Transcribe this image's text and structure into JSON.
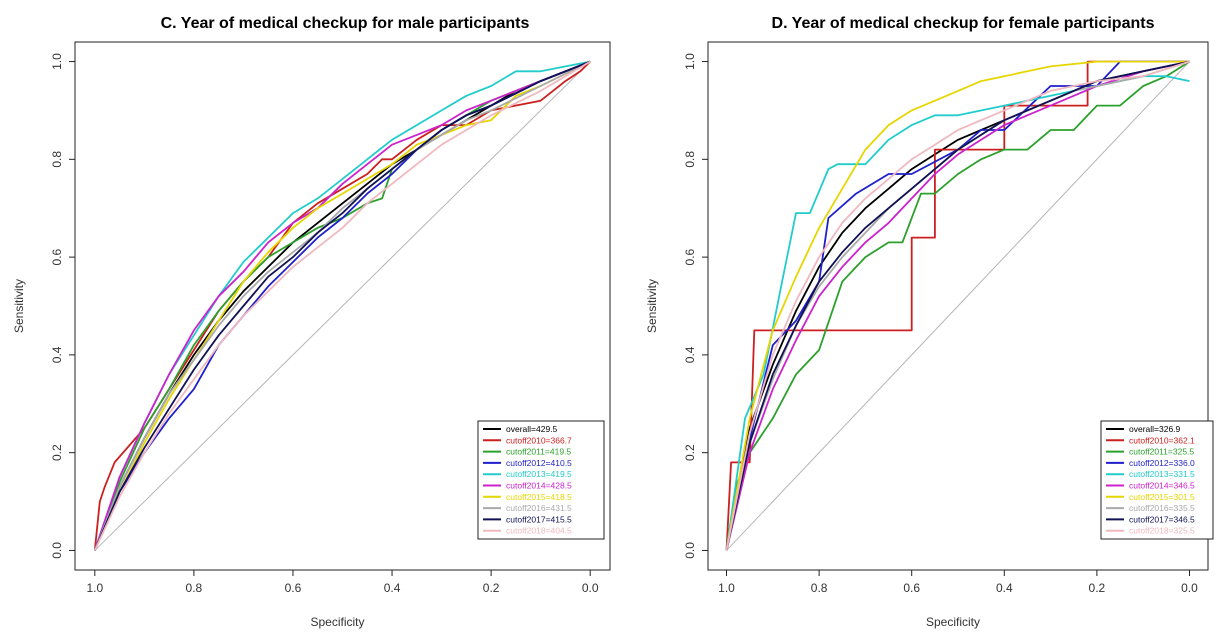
{
  "chart_data": [
    {
      "type": "line",
      "title": "C. Year of medical checkup for male participants",
      "xlabel": "Specificity",
      "ylabel": "Sensitivity",
      "xlim": [
        1.04,
        -0.04
      ],
      "ylim": [
        -0.04,
        1.04
      ],
      "xticks": [
        "1.0",
        "0.8",
        "0.6",
        "0.4",
        "0.2",
        "0.0"
      ],
      "yticks": [
        "0.0",
        "0.2",
        "0.4",
        "0.6",
        "0.8",
        "1.0"
      ],
      "legend_position": "bottom-right",
      "series": [
        {
          "name": "overall=429.5",
          "color": "#000000",
          "x": [
            1.0,
            0.95,
            0.9,
            0.85,
            0.8,
            0.75,
            0.7,
            0.65,
            0.6,
            0.55,
            0.5,
            0.45,
            0.4,
            0.35,
            0.3,
            0.25,
            0.2,
            0.15,
            0.1,
            0.05,
            0.0
          ],
          "y": [
            0.0,
            0.13,
            0.23,
            0.32,
            0.4,
            0.47,
            0.53,
            0.58,
            0.63,
            0.67,
            0.71,
            0.75,
            0.79,
            0.82,
            0.85,
            0.88,
            0.91,
            0.94,
            0.96,
            0.98,
            1.0
          ]
        },
        {
          "name": "cutoff2010=366.7",
          "color": "#cc1f1f",
          "x": [
            1.0,
            0.99,
            0.98,
            0.96,
            0.9,
            0.85,
            0.8,
            0.75,
            0.7,
            0.65,
            0.6,
            0.55,
            0.5,
            0.45,
            0.42,
            0.4,
            0.35,
            0.3,
            0.25,
            0.2,
            0.1,
            0.05,
            0.02,
            0.0
          ],
          "y": [
            0.0,
            0.1,
            0.13,
            0.18,
            0.25,
            0.33,
            0.41,
            0.49,
            0.55,
            0.6,
            0.67,
            0.71,
            0.74,
            0.77,
            0.8,
            0.8,
            0.84,
            0.87,
            0.87,
            0.9,
            0.92,
            0.96,
            0.98,
            1.0
          ]
        },
        {
          "name": "cutoff2011=419.5",
          "color": "#2ca02c",
          "x": [
            1.0,
            0.95,
            0.9,
            0.85,
            0.8,
            0.75,
            0.7,
            0.65,
            0.6,
            0.55,
            0.5,
            0.45,
            0.42,
            0.4,
            0.35,
            0.3,
            0.25,
            0.2,
            0.1,
            0.0
          ],
          "y": [
            0.0,
            0.14,
            0.25,
            0.33,
            0.42,
            0.49,
            0.55,
            0.6,
            0.63,
            0.66,
            0.68,
            0.71,
            0.72,
            0.78,
            0.82,
            0.86,
            0.89,
            0.92,
            0.96,
            1.0
          ]
        },
        {
          "name": "cutoff2012=410.5",
          "color": "#1f1fcc",
          "x": [
            1.0,
            0.95,
            0.9,
            0.85,
            0.8,
            0.75,
            0.7,
            0.65,
            0.6,
            0.55,
            0.5,
            0.45,
            0.4,
            0.35,
            0.3,
            0.25,
            0.2,
            0.1,
            0.0
          ],
          "y": [
            0.0,
            0.12,
            0.2,
            0.27,
            0.33,
            0.42,
            0.48,
            0.54,
            0.59,
            0.64,
            0.68,
            0.73,
            0.77,
            0.82,
            0.86,
            0.89,
            0.91,
            0.96,
            1.0
          ]
        },
        {
          "name": "cutoff2013=419.5",
          "color": "#22cccc",
          "x": [
            1.0,
            0.95,
            0.9,
            0.85,
            0.8,
            0.75,
            0.7,
            0.65,
            0.6,
            0.55,
            0.5,
            0.45,
            0.4,
            0.35,
            0.3,
            0.25,
            0.2,
            0.15,
            0.1,
            0.05,
            0.0
          ],
          "y": [
            0.0,
            0.15,
            0.26,
            0.36,
            0.44,
            0.52,
            0.59,
            0.64,
            0.69,
            0.72,
            0.76,
            0.8,
            0.84,
            0.87,
            0.9,
            0.93,
            0.95,
            0.98,
            0.98,
            0.99,
            1.0
          ]
        },
        {
          "name": "cutoff2014=428.5",
          "color": "#cc22cc",
          "x": [
            1.0,
            0.95,
            0.9,
            0.85,
            0.8,
            0.75,
            0.7,
            0.65,
            0.6,
            0.55,
            0.5,
            0.45,
            0.4,
            0.35,
            0.3,
            0.25,
            0.2,
            0.1,
            0.0
          ],
          "y": [
            0.0,
            0.15,
            0.26,
            0.36,
            0.45,
            0.52,
            0.57,
            0.63,
            0.67,
            0.7,
            0.75,
            0.79,
            0.83,
            0.85,
            0.87,
            0.9,
            0.92,
            0.96,
            1.0
          ]
        },
        {
          "name": "cutoff2015=418.5",
          "color": "#e6d600",
          "x": [
            1.0,
            0.95,
            0.9,
            0.85,
            0.8,
            0.75,
            0.7,
            0.65,
            0.6,
            0.55,
            0.5,
            0.45,
            0.4,
            0.35,
            0.3,
            0.25,
            0.2,
            0.15,
            0.1,
            0.0
          ],
          "y": [
            0.0,
            0.12,
            0.22,
            0.31,
            0.39,
            0.47,
            0.55,
            0.61,
            0.66,
            0.7,
            0.73,
            0.76,
            0.79,
            0.83,
            0.85,
            0.87,
            0.88,
            0.93,
            0.95,
            1.0
          ]
        },
        {
          "name": "cutoff2016=431.5",
          "color": "#aaaaaa",
          "x": [
            1.0,
            0.95,
            0.9,
            0.85,
            0.8,
            0.75,
            0.7,
            0.65,
            0.6,
            0.55,
            0.5,
            0.45,
            0.4,
            0.35,
            0.3,
            0.25,
            0.2,
            0.1,
            0.0
          ],
          "y": [
            0.0,
            0.13,
            0.23,
            0.32,
            0.39,
            0.46,
            0.52,
            0.57,
            0.61,
            0.65,
            0.7,
            0.74,
            0.78,
            0.82,
            0.85,
            0.88,
            0.9,
            0.95,
            1.0
          ]
        },
        {
          "name": "cutoff2017=415.5",
          "color": "#111155",
          "x": [
            1.0,
            0.95,
            0.9,
            0.85,
            0.8,
            0.75,
            0.7,
            0.65,
            0.6,
            0.55,
            0.5,
            0.45,
            0.4,
            0.35,
            0.3,
            0.25,
            0.2,
            0.1,
            0.0
          ],
          "y": [
            0.0,
            0.12,
            0.21,
            0.29,
            0.37,
            0.44,
            0.5,
            0.56,
            0.6,
            0.65,
            0.69,
            0.74,
            0.78,
            0.82,
            0.86,
            0.89,
            0.91,
            0.96,
            1.0
          ]
        },
        {
          "name": "cutoff2018=404.5",
          "color": "#f0b8c0",
          "x": [
            1.0,
            0.95,
            0.9,
            0.85,
            0.8,
            0.75,
            0.7,
            0.65,
            0.6,
            0.55,
            0.5,
            0.45,
            0.4,
            0.35,
            0.3,
            0.25,
            0.2,
            0.1,
            0.0
          ],
          "y": [
            0.0,
            0.11,
            0.2,
            0.28,
            0.35,
            0.42,
            0.48,
            0.53,
            0.58,
            0.62,
            0.66,
            0.71,
            0.75,
            0.79,
            0.83,
            0.86,
            0.89,
            0.94,
            1.0
          ]
        }
      ]
    },
    {
      "type": "line",
      "title": "D. Year of medical checkup for female participants",
      "xlabel": "Specificity",
      "ylabel": "Sensitivity",
      "xlim": [
        1.04,
        -0.04
      ],
      "ylim": [
        -0.04,
        1.04
      ],
      "xticks": [
        "1.0",
        "0.8",
        "0.6",
        "0.4",
        "0.2",
        "0.0"
      ],
      "yticks": [
        "0.0",
        "0.2",
        "0.4",
        "0.6",
        "0.8",
        "1.0"
      ],
      "legend_position": "bottom-right",
      "series": [
        {
          "name": "overall=326.9",
          "color": "#000000",
          "x": [
            1.0,
            0.95,
            0.9,
            0.85,
            0.8,
            0.75,
            0.7,
            0.65,
            0.6,
            0.55,
            0.5,
            0.45,
            0.4,
            0.35,
            0.3,
            0.25,
            0.2,
            0.1,
            0.0
          ],
          "y": [
            0.0,
            0.25,
            0.38,
            0.49,
            0.58,
            0.65,
            0.7,
            0.74,
            0.78,
            0.81,
            0.84,
            0.86,
            0.88,
            0.9,
            0.92,
            0.94,
            0.96,
            0.98,
            1.0
          ]
        },
        {
          "name": "cutoff2010=362.1",
          "color": "#cc1f1f",
          "x": [
            1.0,
            0.99,
            0.95,
            0.94,
            0.6,
            0.6,
            0.55,
            0.55,
            0.4,
            0.4,
            0.22,
            0.22,
            0.0
          ],
          "y": [
            0.0,
            0.18,
            0.18,
            0.45,
            0.45,
            0.64,
            0.64,
            0.82,
            0.82,
            0.91,
            0.91,
            1.0,
            1.0
          ]
        },
        {
          "name": "cutoff2011=325.5",
          "color": "#2ca02c",
          "x": [
            1.0,
            0.98,
            0.95,
            0.9,
            0.85,
            0.8,
            0.75,
            0.7,
            0.65,
            0.62,
            0.58,
            0.55,
            0.5,
            0.45,
            0.4,
            0.35,
            0.3,
            0.25,
            0.2,
            0.15,
            0.1,
            0.05,
            0.0
          ],
          "y": [
            0.0,
            0.13,
            0.2,
            0.27,
            0.36,
            0.41,
            0.55,
            0.6,
            0.63,
            0.63,
            0.73,
            0.73,
            0.77,
            0.8,
            0.82,
            0.82,
            0.86,
            0.86,
            0.91,
            0.91,
            0.95,
            0.97,
            1.0
          ]
        },
        {
          "name": "cutoff2012=336.0",
          "color": "#1f1fcc",
          "x": [
            1.0,
            0.97,
            0.9,
            0.85,
            0.8,
            0.78,
            0.72,
            0.65,
            0.6,
            0.5,
            0.45,
            0.4,
            0.3,
            0.2,
            0.15,
            0.1,
            0.0
          ],
          "y": [
            0.0,
            0.15,
            0.42,
            0.47,
            0.55,
            0.68,
            0.73,
            0.77,
            0.77,
            0.82,
            0.86,
            0.86,
            0.95,
            0.95,
            1.0,
            1.0,
            1.0
          ]
        },
        {
          "name": "cutoff2013=331.5",
          "color": "#22cccc",
          "x": [
            1.0,
            0.96,
            0.92,
            0.88,
            0.85,
            0.82,
            0.78,
            0.76,
            0.7,
            0.65,
            0.6,
            0.55,
            0.5,
            0.4,
            0.3,
            0.2,
            0.1,
            0.05,
            0.0
          ],
          "y": [
            0.0,
            0.27,
            0.36,
            0.55,
            0.69,
            0.69,
            0.78,
            0.79,
            0.79,
            0.84,
            0.87,
            0.89,
            0.89,
            0.91,
            0.93,
            0.95,
            0.97,
            0.97,
            0.96
          ]
        },
        {
          "name": "cutoff2014=346.5",
          "color": "#cc22cc",
          "x": [
            1.0,
            0.95,
            0.9,
            0.85,
            0.8,
            0.75,
            0.7,
            0.65,
            0.6,
            0.55,
            0.5,
            0.45,
            0.4,
            0.35,
            0.3,
            0.25,
            0.2,
            0.1,
            0.0
          ],
          "y": [
            0.0,
            0.2,
            0.33,
            0.43,
            0.52,
            0.58,
            0.63,
            0.67,
            0.72,
            0.77,
            0.81,
            0.84,
            0.87,
            0.89,
            0.91,
            0.93,
            0.95,
            0.98,
            1.0
          ]
        },
        {
          "name": "cutoff2015=301.5",
          "color": "#e6d600",
          "x": [
            1.0,
            0.95,
            0.9,
            0.85,
            0.8,
            0.75,
            0.7,
            0.65,
            0.6,
            0.55,
            0.5,
            0.45,
            0.4,
            0.35,
            0.3,
            0.2,
            0.1,
            0.0
          ],
          "y": [
            0.0,
            0.27,
            0.45,
            0.56,
            0.66,
            0.74,
            0.82,
            0.87,
            0.9,
            0.92,
            0.94,
            0.96,
            0.97,
            0.98,
            0.99,
            1.0,
            1.0,
            1.0
          ]
        },
        {
          "name": "cutoff2016=335.5",
          "color": "#aaaaaa",
          "x": [
            1.0,
            0.95,
            0.9,
            0.85,
            0.8,
            0.75,
            0.7,
            0.65,
            0.6,
            0.55,
            0.5,
            0.45,
            0.4,
            0.35,
            0.3,
            0.25,
            0.2,
            0.1,
            0.0
          ],
          "y": [
            0.0,
            0.22,
            0.35,
            0.46,
            0.54,
            0.6,
            0.65,
            0.7,
            0.74,
            0.78,
            0.82,
            0.85,
            0.88,
            0.9,
            0.92,
            0.94,
            0.95,
            0.97,
            1.0
          ]
        },
        {
          "name": "cutoff2017=346.5",
          "color": "#111155",
          "x": [
            1.0,
            0.95,
            0.9,
            0.85,
            0.8,
            0.75,
            0.7,
            0.65,
            0.6,
            0.55,
            0.5,
            0.45,
            0.4,
            0.35,
            0.3,
            0.25,
            0.2,
            0.1,
            0.0
          ],
          "y": [
            0.0,
            0.22,
            0.36,
            0.46,
            0.55,
            0.61,
            0.66,
            0.7,
            0.74,
            0.78,
            0.82,
            0.85,
            0.88,
            0.9,
            0.92,
            0.94,
            0.96,
            0.98,
            1.0
          ]
        },
        {
          "name": "cutoff2018=325.5",
          "color": "#f0b8c0",
          "x": [
            1.0,
            0.95,
            0.9,
            0.85,
            0.8,
            0.75,
            0.7,
            0.65,
            0.6,
            0.55,
            0.5,
            0.45,
            0.4,
            0.35,
            0.3,
            0.25,
            0.2,
            0.1,
            0.0
          ],
          "y": [
            0.0,
            0.24,
            0.4,
            0.51,
            0.6,
            0.67,
            0.72,
            0.76,
            0.8,
            0.83,
            0.86,
            0.88,
            0.9,
            0.92,
            0.94,
            0.95,
            0.96,
            0.97,
            1.0
          ]
        }
      ]
    }
  ]
}
